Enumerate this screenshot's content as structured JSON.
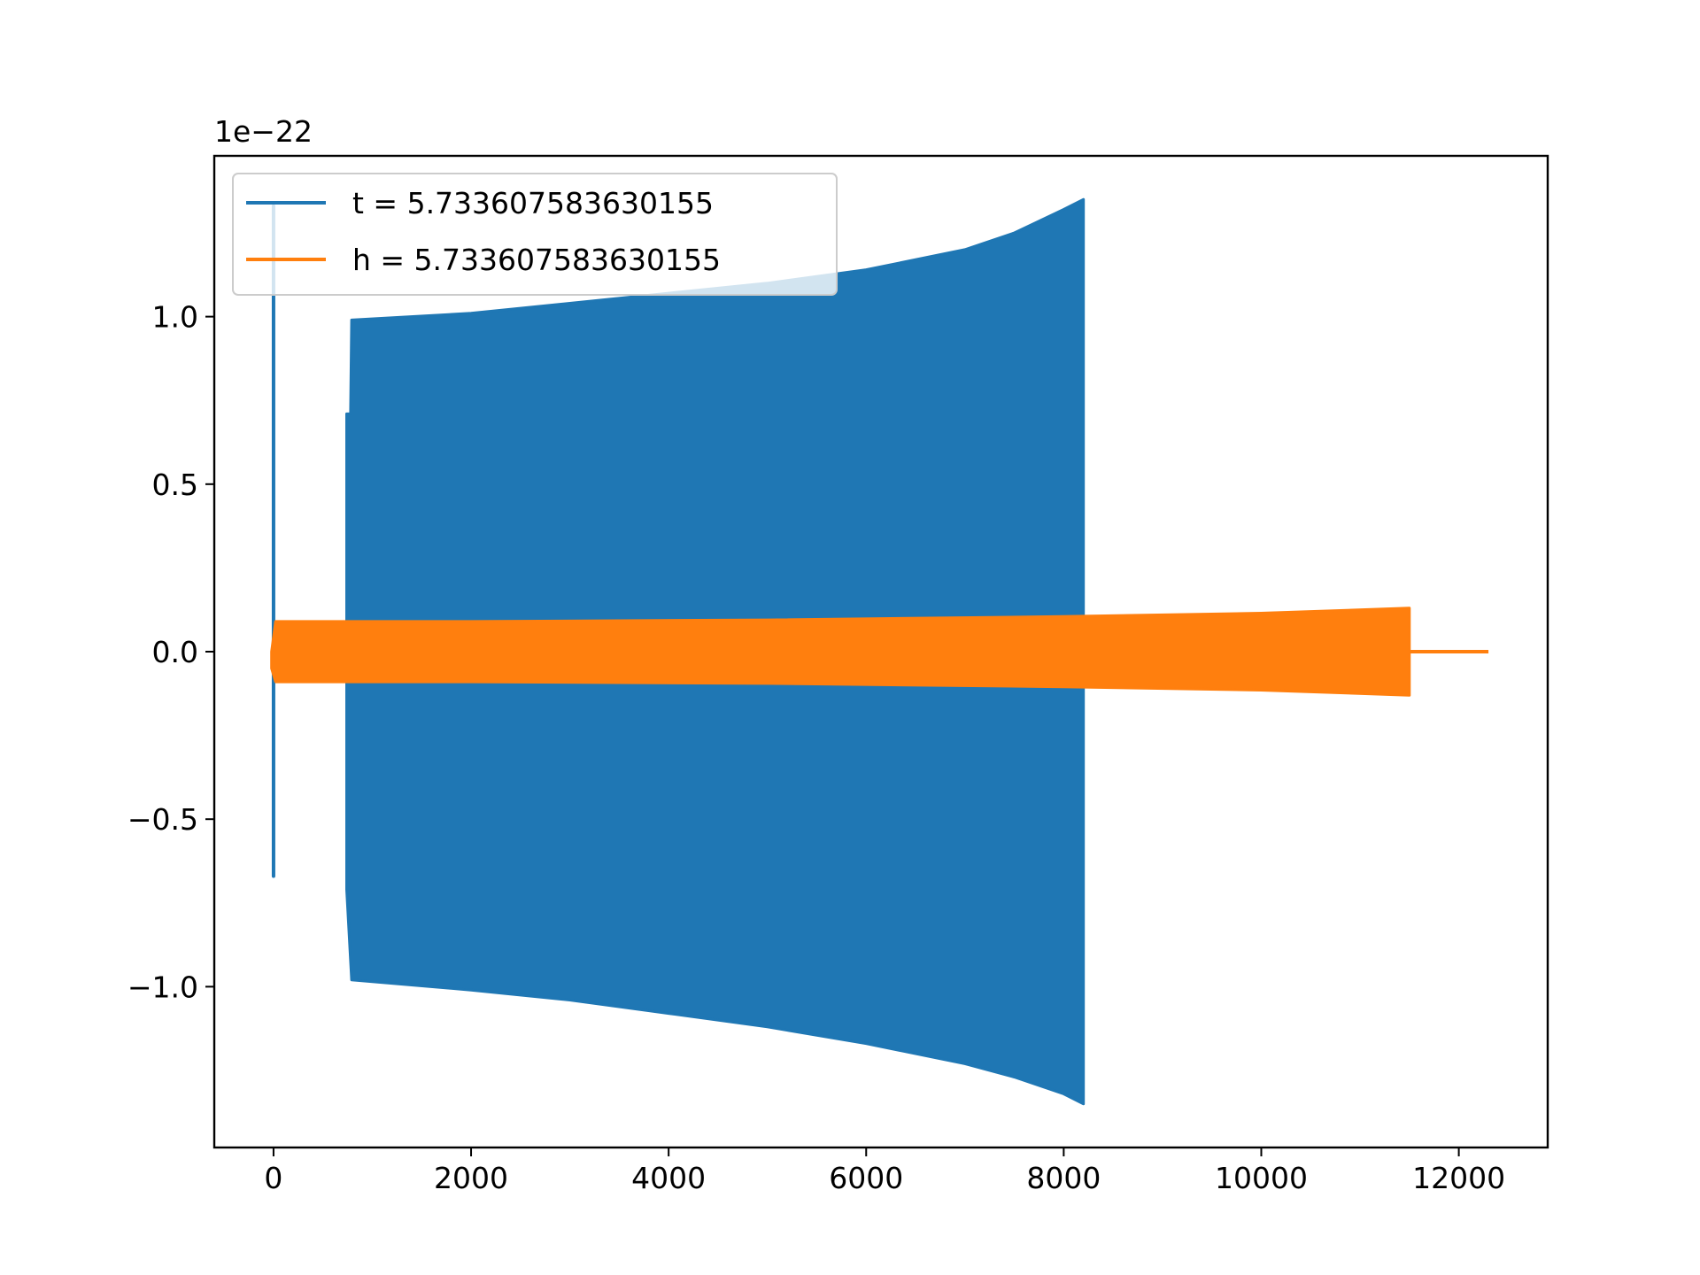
{
  "chart_data": {
    "type": "line",
    "title": "",
    "xlabel": "",
    "ylabel": "",
    "offset_text": "1e−22",
    "xlim": [
      -600,
      12900
    ],
    "ylim": [
      -1.48,
      1.48
    ],
    "x_ticks": [
      0,
      2000,
      4000,
      6000,
      8000,
      10000,
      12000
    ],
    "x_tick_labels": [
      "0",
      "2000",
      "4000",
      "6000",
      "8000",
      "10000",
      "12000"
    ],
    "y_ticks": [
      -1.0,
      -0.5,
      0.0,
      0.5,
      1.0
    ],
    "y_tick_labels": [
      "−1.0",
      "−0.5",
      "0.0",
      "0.5",
      "1.0"
    ],
    "grid": false,
    "legend_position": "upper-left",
    "series": [
      {
        "name": "t = 5.733607583630155",
        "color": "#1f77b4",
        "spikes": [
          {
            "x": 0,
            "y": 1.33
          },
          {
            "x": 0,
            "y": -0.67
          }
        ],
        "envelope_upper": [
          {
            "x": 740,
            "y": 0.71
          },
          {
            "x": 780,
            "y": 0.71
          },
          {
            "x": 790,
            "y": 0.99
          },
          {
            "x": 2000,
            "y": 1.01
          },
          {
            "x": 3000,
            "y": 1.04
          },
          {
            "x": 4000,
            "y": 1.07
          },
          {
            "x": 5000,
            "y": 1.1
          },
          {
            "x": 6000,
            "y": 1.14
          },
          {
            "x": 7000,
            "y": 1.2
          },
          {
            "x": 7500,
            "y": 1.25
          },
          {
            "x": 8000,
            "y": 1.32
          },
          {
            "x": 8200,
            "y": 1.35
          }
        ],
        "envelope_lower": [
          {
            "x": 740,
            "y": -0.71
          },
          {
            "x": 790,
            "y": -0.98
          },
          {
            "x": 2000,
            "y": -1.01
          },
          {
            "x": 3000,
            "y": -1.04
          },
          {
            "x": 4000,
            "y": -1.08
          },
          {
            "x": 5000,
            "y": -1.12
          },
          {
            "x": 6000,
            "y": -1.17
          },
          {
            "x": 7000,
            "y": -1.23
          },
          {
            "x": 7500,
            "y": -1.27
          },
          {
            "x": 8000,
            "y": -1.32
          },
          {
            "x": 8200,
            "y": -1.35
          }
        ]
      },
      {
        "name": "h = 5.733607583630155",
        "color": "#ff7f0e",
        "envelope_upper": [
          {
            "x": -20,
            "y": 0.0
          },
          {
            "x": 20,
            "y": 0.09
          },
          {
            "x": 2000,
            "y": 0.09
          },
          {
            "x": 5000,
            "y": 0.095
          },
          {
            "x": 8000,
            "y": 0.105
          },
          {
            "x": 10000,
            "y": 0.115
          },
          {
            "x": 11500,
            "y": 0.13
          }
        ],
        "envelope_lower": [
          {
            "x": -20,
            "y": -0.05
          },
          {
            "x": 20,
            "y": -0.09
          },
          {
            "x": 2000,
            "y": -0.09
          },
          {
            "x": 5000,
            "y": -0.095
          },
          {
            "x": 8000,
            "y": -0.105
          },
          {
            "x": 10000,
            "y": -0.115
          },
          {
            "x": 11500,
            "y": -0.13
          }
        ],
        "tail": [
          {
            "x": 11500,
            "y": 0.0
          },
          {
            "x": 12300,
            "y": 0.0
          }
        ]
      }
    ]
  }
}
